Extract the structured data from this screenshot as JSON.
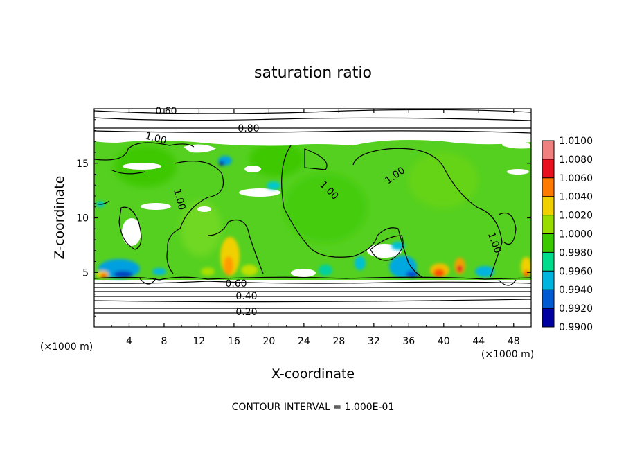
{
  "chart_data": {
    "type": "heatmap",
    "title": "saturation ratio",
    "xlabel": "X-coordinate",
    "ylabel": "Z-coordinate",
    "x_units_left": "(×1000 m)",
    "x_units_right": "(×1000 m)",
    "footer": "CONTOUR INTERVAL = 1.000E-01",
    "xlim": [
      0,
      50
    ],
    "ylim": [
      0,
      20
    ],
    "x_ticks": [
      4,
      8,
      12,
      16,
      20,
      24,
      28,
      32,
      36,
      40,
      44,
      48
    ],
    "y_ticks": [
      5,
      10,
      15
    ],
    "colorbar": {
      "levels": [
        "1.0100",
        "1.0080",
        "1.0060",
        "1.0040",
        "1.0020",
        "1.0000",
        "0.9980",
        "0.9960",
        "0.9940",
        "0.9920",
        "0.9900"
      ],
      "colors": [
        "#f08080",
        "#e8101e",
        "#ff7a00",
        "#f0d000",
        "#98dc00",
        "#3cc800",
        "#00dc8c",
        "#00b4e0",
        "#005ad2",
        "#0000a0",
        "#6a0090"
      ]
    },
    "contour_labels": [
      {
        "text": "0.60",
        "x": 16.7,
        "y": 4.0
      },
      {
        "text": "0.40",
        "x": 17.5,
        "y": 2.8
      },
      {
        "text": "0.20",
        "x": 17.5,
        "y": 1.3
      },
      {
        "text": "0.80",
        "x": 17.7,
        "y": 18.3
      },
      {
        "text": "0.60",
        "x": 8.2,
        "y": 19.6
      },
      {
        "text": "1.00",
        "x": 7.0,
        "y": 17.1
      },
      {
        "text": "1.00",
        "x": 9.4,
        "y": 11.3
      },
      {
        "text": "1.00",
        "x": 26.7,
        "y": 12.5
      },
      {
        "text": "1.00",
        "x": 34.1,
        "y": 13.7
      },
      {
        "text": "1.00",
        "x": 45.5,
        "y": 7.9
      }
    ]
  }
}
